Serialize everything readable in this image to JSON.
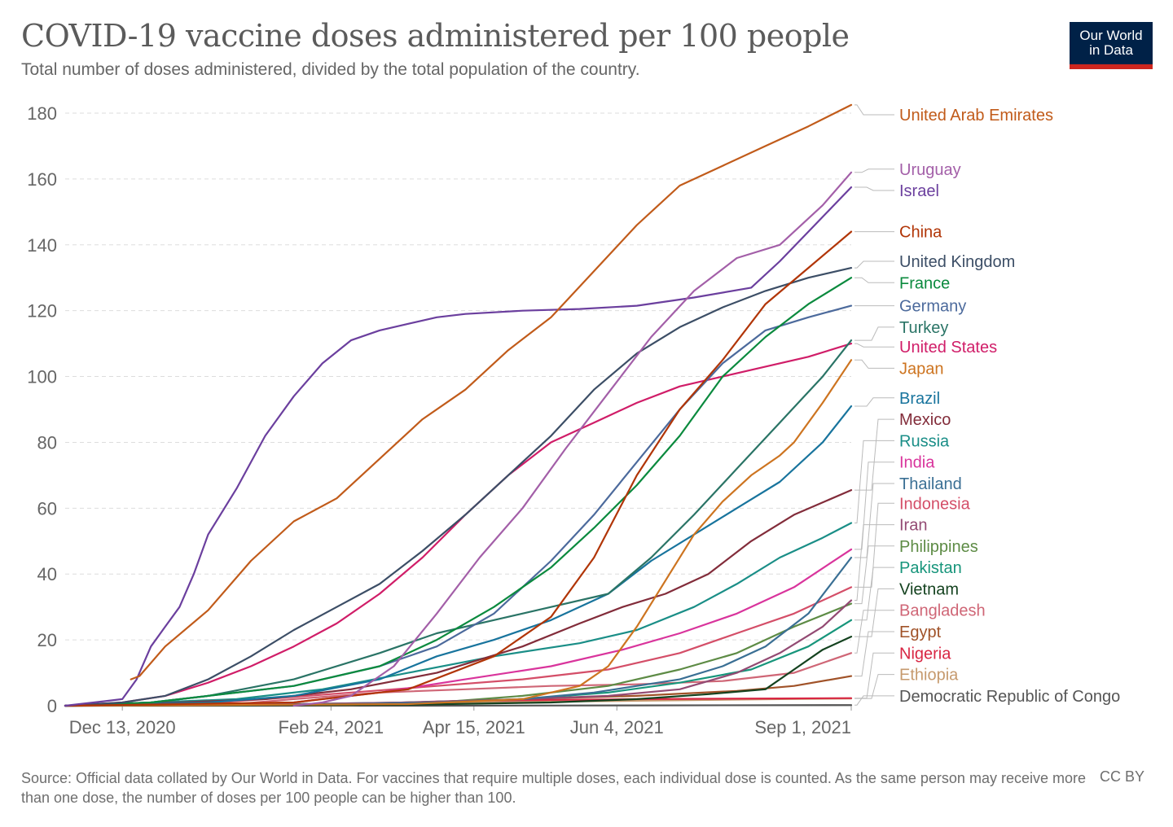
{
  "header": {
    "title": "COVID-19 vaccine doses administered per 100 people",
    "subtitle": "Total number of doses administered, divided by the total population of the country.",
    "logo_line1": "Our World",
    "logo_line2": "in Data"
  },
  "footer": {
    "source": "Source: Official data collated by Our World in Data. For vaccines that require multiple doses, each individual dose is counted. As the same person may receive more than one dose, the number of doses per 100 people can be higher than 100.",
    "license": "CC BY"
  },
  "chart_data": {
    "type": "line",
    "title": "COVID-19 vaccine doses administered per 100 people",
    "xlabel": "",
    "ylabel": "",
    "ylim": [
      0,
      180
    ],
    "yticks": [
      0,
      20,
      40,
      60,
      80,
      100,
      120,
      140,
      160,
      180
    ],
    "xlim": [
      -20,
      255
    ],
    "x_unit": "days since Dec 13, 2020",
    "xticks": [
      {
        "x": 0,
        "label": "Dec 13, 2020"
      },
      {
        "x": 73,
        "label": "Feb 24, 2021"
      },
      {
        "x": 123,
        "label": "Apr 15, 2021"
      },
      {
        "x": 173,
        "label": "Jun 4, 2021"
      },
      {
        "x": 262,
        "label": "Sep 1, 2021"
      }
    ],
    "grid": true,
    "series": [
      {
        "name": "United Arab Emirates",
        "color": "#c15b1a",
        "label_value": 179.5,
        "x": [
          3,
          6,
          15,
          30,
          45,
          60,
          75,
          90,
          105,
          120,
          135,
          150,
          165,
          180,
          195,
          210,
          225,
          240,
          255
        ],
        "values": [
          8,
          9,
          18,
          29,
          44,
          56,
          63,
          75,
          87,
          96,
          108,
          118,
          132,
          146,
          158,
          164,
          170,
          176,
          182.5
        ]
      },
      {
        "name": "Uruguay",
        "color": "#a35fa8",
        "label_value": 163,
        "x": [
          60,
          70,
          80,
          95,
          110,
          125,
          140,
          155,
          170,
          185,
          200,
          215,
          230,
          245,
          255
        ],
        "values": [
          0,
          1,
          3,
          12,
          28,
          45,
          60,
          78,
          95,
          112,
          126,
          136,
          140,
          152,
          162
        ]
      },
      {
        "name": "Israel",
        "color": "#6b3f9e",
        "label_value": 156.5,
        "x": [
          -20,
          -10,
          0,
          5,
          10,
          15,
          20,
          25,
          30,
          40,
          50,
          60,
          70,
          80,
          90,
          100,
          110,
          120,
          140,
          160,
          180,
          200,
          220,
          230,
          240,
          255
        ],
        "values": [
          0,
          1,
          2,
          8,
          18,
          24,
          30,
          40,
          52,
          66,
          82,
          94,
          104,
          111,
          114,
          116,
          118,
          119,
          120,
          120.5,
          121.5,
          124,
          127,
          135,
          144,
          157.5
        ]
      },
      {
        "name": "China",
        "color": "#b13507",
        "label_value": 144,
        "x": [
          -20,
          60,
          100,
          130,
          150,
          165,
          180,
          195,
          210,
          225,
          240,
          255
        ],
        "values": [
          0,
          1,
          5,
          15,
          27,
          45,
          70,
          90,
          105,
          122,
          133,
          144
        ]
      },
      {
        "name": "United Kingdom",
        "color": "#3c4e66",
        "label_value": 135,
        "x": [
          -20,
          0,
          15,
          30,
          45,
          60,
          75,
          90,
          105,
          120,
          135,
          150,
          165,
          180,
          195,
          210,
          225,
          240,
          255
        ],
        "values": [
          0,
          1,
          3,
          8,
          15,
          23,
          30,
          37,
          47,
          58,
          70,
          82,
          96,
          107,
          115,
          121,
          126,
          130,
          133
        ]
      },
      {
        "name": "France",
        "color": "#0b8a3e",
        "label_value": 128.5,
        "x": [
          -20,
          10,
          30,
          60,
          90,
          110,
          130,
          150,
          165,
          180,
          195,
          210,
          225,
          240,
          255
        ],
        "values": [
          0,
          1,
          3,
          6,
          12,
          20,
          30,
          42,
          54,
          67,
          82,
          100,
          112,
          122,
          130
        ]
      },
      {
        "name": "Germany",
        "color": "#4c6a9c",
        "label_value": 121.5,
        "x": [
          -20,
          10,
          30,
          60,
          90,
          110,
          130,
          150,
          165,
          180,
          195,
          210,
          225,
          240,
          255
        ],
        "values": [
          0,
          1,
          3,
          6,
          12,
          18,
          28,
          44,
          58,
          74,
          90,
          104,
          114,
          118,
          121.5
        ]
      },
      {
        "name": "Turkey",
        "color": "#2a7466",
        "label_value": 115,
        "x": [
          -20,
          10,
          30,
          60,
          90,
          110,
          130,
          150,
          170,
          185,
          200,
          215,
          230,
          245,
          255
        ],
        "values": [
          0,
          1,
          3,
          8,
          16,
          22,
          26,
          30,
          34,
          45,
          58,
          72,
          86,
          100,
          111
        ]
      },
      {
        "name": "United States",
        "color": "#d01d68",
        "label_value": 109,
        "x": [
          -20,
          0,
          15,
          30,
          45,
          60,
          75,
          90,
          105,
          120,
          135,
          150,
          165,
          180,
          195,
          210,
          225,
          240,
          255
        ],
        "values": [
          0,
          1,
          3,
          7,
          12,
          18,
          25,
          34,
          45,
          58,
          70,
          80,
          86,
          92,
          97,
          100,
          103,
          106,
          110
        ]
      },
      {
        "name": "Japan",
        "color": "#cd7420",
        "label_value": 102.5,
        "x": [
          -20,
          100,
          140,
          160,
          170,
          180,
          190,
          200,
          210,
          220,
          230,
          235,
          245,
          255
        ],
        "values": [
          0,
          0.5,
          2,
          6,
          12,
          24,
          38,
          52,
          62,
          70,
          76,
          80,
          92,
          105
        ]
      },
      {
        "name": "Brazil",
        "color": "#18749d",
        "label_value": 93.5,
        "x": [
          -20,
          30,
          60,
          90,
          110,
          130,
          150,
          170,
          185,
          200,
          215,
          230,
          245,
          255
        ],
        "values": [
          0,
          1,
          3,
          8,
          15,
          20,
          26,
          34,
          44,
          52,
          60,
          68,
          80,
          91
        ]
      },
      {
        "name": "Mexico",
        "color": "#822c3a",
        "label_value": 87,
        "x": [
          -20,
          20,
          50,
          80,
          110,
          140,
          160,
          175,
          190,
          205,
          220,
          235,
          255
        ],
        "values": [
          0,
          1,
          2,
          5,
          10,
          18,
          25,
          30,
          34,
          40,
          50,
          58,
          65.5
        ]
      },
      {
        "name": "Russia",
        "color": "#1a8e87",
        "label_value": 80.5,
        "x": [
          -20,
          10,
          40,
          70,
          100,
          130,
          160,
          180,
          200,
          215,
          230,
          245,
          255
        ],
        "values": [
          0,
          1,
          2,
          5,
          10,
          15,
          19,
          23,
          30,
          37,
          45,
          51,
          55.5
        ]
      },
      {
        "name": "India",
        "color": "#d9349c",
        "label_value": 74,
        "x": [
          -20,
          35,
          60,
          90,
          120,
          150,
          175,
          195,
          215,
          235,
          255
        ],
        "values": [
          0,
          0.5,
          1,
          4,
          8,
          12,
          17,
          22,
          28,
          36,
          47.5
        ]
      },
      {
        "name": "Thailand",
        "color": "#3a6f94",
        "label_value": 67.5,
        "x": [
          -20,
          80,
          110,
          140,
          165,
          180,
          195,
          210,
          225,
          240,
          255
        ],
        "values": [
          0,
          0.5,
          1,
          2,
          4,
          6,
          8,
          12,
          18,
          28,
          45
        ]
      },
      {
        "name": "Indonesia",
        "color": "#d44e68",
        "label_value": 61.5,
        "x": [
          -20,
          25,
          50,
          80,
          110,
          140,
          170,
          195,
          215,
          235,
          255
        ],
        "values": [
          0,
          0.5,
          2,
          4,
          6,
          8,
          11,
          16,
          22,
          28,
          36
        ]
      },
      {
        "name": "Iran",
        "color": "#934a73",
        "label_value": 55,
        "x": [
          -20,
          60,
          100,
          140,
          170,
          195,
          215,
          230,
          245,
          255
        ],
        "values": [
          0,
          0.5,
          1,
          2,
          3,
          5,
          10,
          16,
          24,
          32
        ]
      },
      {
        "name": "Philippines",
        "color": "#5d8b45",
        "label_value": 48.5,
        "x": [
          -20,
          70,
          110,
          140,
          170,
          195,
          215,
          235,
          255
        ],
        "values": [
          0,
          0.5,
          1,
          3,
          6,
          11,
          16,
          24,
          31
        ]
      },
      {
        "name": "Pakistan",
        "color": "#17957b",
        "label_value": 42,
        "x": [
          -20,
          60,
          100,
          140,
          170,
          195,
          220,
          240,
          255
        ],
        "values": [
          0,
          0.5,
          1,
          2,
          4,
          7,
          11,
          18,
          26
        ]
      },
      {
        "name": "Vietnam",
        "color": "#14421f",
        "label_value": 35.5,
        "x": [
          -20,
          100,
          150,
          180,
          205,
          225,
          235,
          245,
          255
        ],
        "values": [
          0,
          0.3,
          1,
          2,
          3.5,
          5,
          11,
          17,
          21
        ]
      },
      {
        "name": "Bangladesh",
        "color": "#cf6676",
        "label_value": 29,
        "x": [
          -20,
          40,
          60,
          90,
          120,
          150,
          180,
          210,
          235,
          255
        ],
        "values": [
          0,
          0.5,
          2,
          4,
          5,
          6,
          6.5,
          7.5,
          10,
          16
        ]
      },
      {
        "name": "Egypt",
        "color": "#a05228",
        "label_value": 22.5,
        "x": [
          -20,
          60,
          100,
          140,
          180,
          215,
          235,
          255
        ],
        "values": [
          0,
          0.3,
          1,
          2,
          3,
          4.5,
          6,
          9
        ]
      },
      {
        "name": "Nigeria",
        "color": "#d82643",
        "label_value": 16,
        "x": [
          -20,
          60,
          90,
          120,
          180,
          230,
          255
        ],
        "values": [
          0,
          0.2,
          0.8,
          1.5,
          2,
          2.2,
          2.3
        ]
      },
      {
        "name": "Ethiopia",
        "color": "#c69a6e",
        "label_value": 9.5,
        "x": [
          -20,
          80,
          120,
          180,
          230,
          255
        ],
        "values": [
          0,
          0.2,
          1,
          1.5,
          2,
          2.2
        ]
      },
      {
        "name": "Democratic Republic of Congo",
        "color": "#555555",
        "label_value": 3,
        "x": [
          -20,
          100,
          180,
          255
        ],
        "values": [
          0,
          0,
          0.1,
          0.2
        ]
      }
    ]
  }
}
